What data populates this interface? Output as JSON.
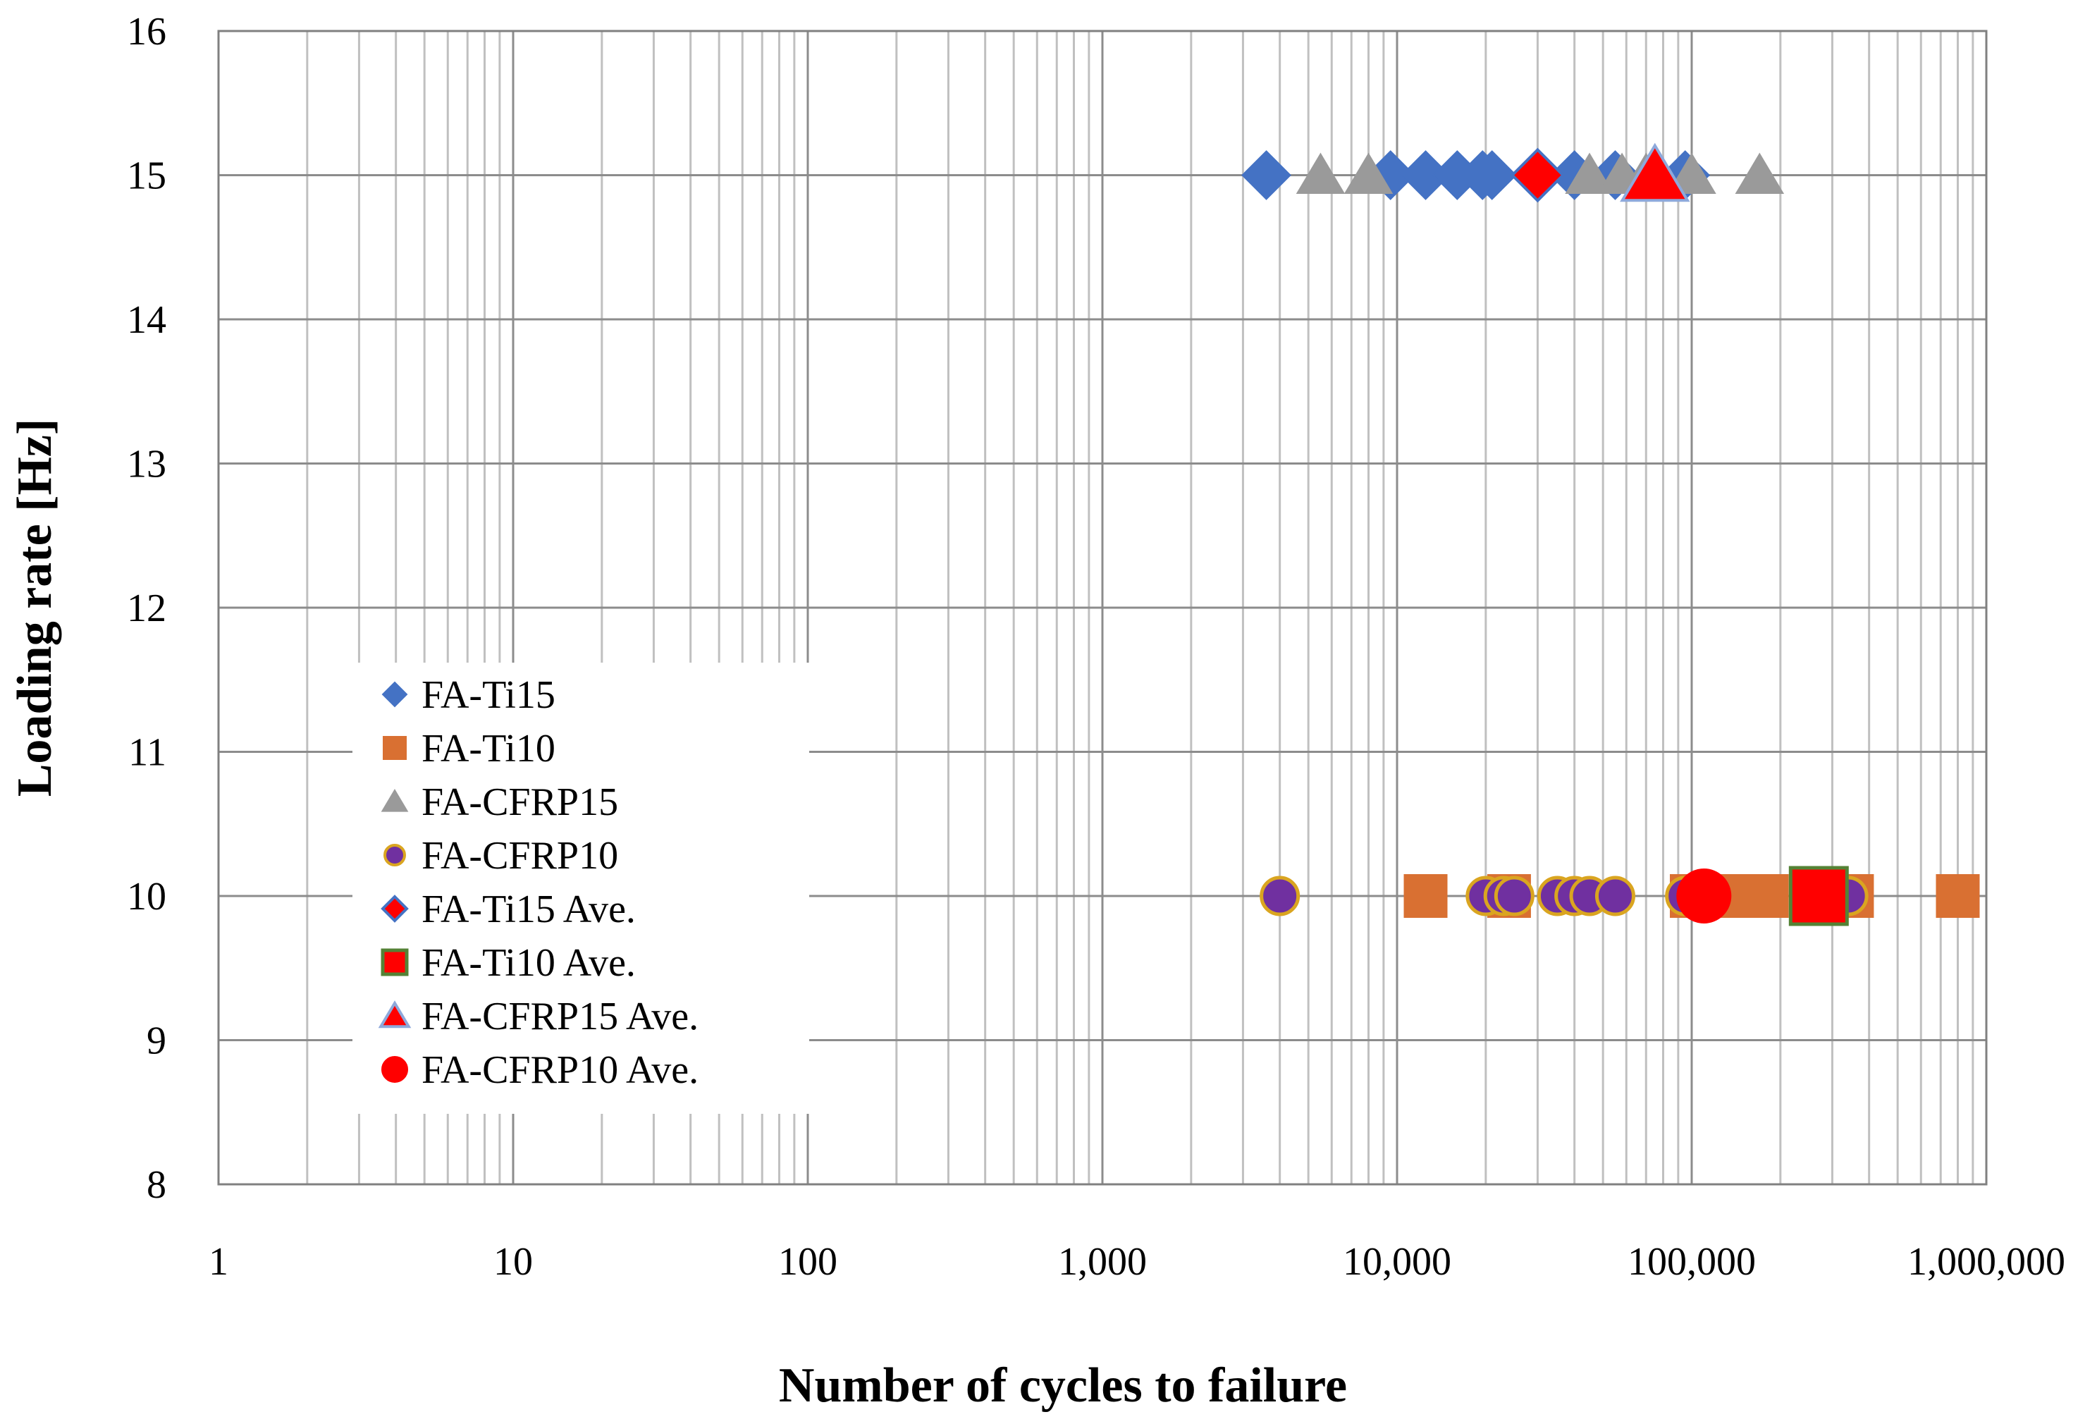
{
  "chart_data": {
    "type": "scatter",
    "title": "",
    "xlabel": "Number of cycles to failure",
    "ylabel": "Loading rate [Hz]",
    "xscale": "log",
    "xlim": [
      1,
      1000000
    ],
    "ylim": [
      8,
      16
    ],
    "grid": true,
    "legend_position": "lower-left",
    "x_tick_labels": [
      "1",
      "10",
      "100",
      "1,000",
      "10,000",
      "100,000",
      "1,000,000"
    ],
    "y_tick_labels": [
      "8",
      "9",
      "10",
      "11",
      "12",
      "13",
      "14",
      "15",
      "16"
    ],
    "series": [
      {
        "name": "FA-Ti15",
        "marker": "diamond",
        "color": "#4472C4",
        "stroke": "#4472C4",
        "x": [
          3600,
          9500,
          12500,
          16000,
          19500,
          21000,
          40000,
          55000,
          95000
        ],
        "y": [
          15,
          15,
          15,
          15,
          15,
          15,
          15,
          15,
          15
        ]
      },
      {
        "name": "FA-Ti10",
        "marker": "square",
        "color": "#D97032",
        "stroke": "#D97032",
        "x": [
          12500,
          24000,
          100000,
          140000,
          180000,
          300000,
          350000,
          800000
        ],
        "y": [
          10,
          10,
          10,
          10,
          10,
          10,
          10,
          10
        ]
      },
      {
        "name": "FA-CFRP15",
        "marker": "triangle",
        "color": "#9A9A9A",
        "stroke": "#9A9A9A",
        "x": [
          5500,
          8000,
          45000,
          58000,
          70000,
          100000,
          170000
        ],
        "y": [
          15,
          15,
          15,
          15,
          15,
          15,
          15
        ]
      },
      {
        "name": "FA-CFRP10",
        "marker": "circle",
        "color": "#7030A0",
        "stroke": "#DAA520",
        "x": [
          4000,
          20000,
          23000,
          25000,
          35000,
          40000,
          45000,
          55000,
          95000,
          250000,
          340000
        ],
        "y": [
          10,
          10,
          10,
          10,
          10,
          10,
          10,
          10,
          10,
          10,
          10
        ]
      },
      {
        "name": "FA-Ti15 Ave.",
        "marker": "diamond",
        "color": "#FF0000",
        "stroke": "#4472C4",
        "x": [
          30000
        ],
        "y": [
          15
        ]
      },
      {
        "name": "FA-Ti10 Ave.",
        "marker": "square",
        "color": "#FF0000",
        "stroke": "#548235",
        "x": [
          270000
        ],
        "y": [
          10
        ]
      },
      {
        "name": "FA-CFRP15 Ave.",
        "marker": "triangle",
        "color": "#FF0000",
        "stroke": "#8EA9DB",
        "x": [
          75000
        ],
        "y": [
          15
        ]
      },
      {
        "name": "FA-CFRP10 Ave.",
        "marker": "circle",
        "color": "#FF0000",
        "stroke": "#FF0000",
        "x": [
          110000
        ],
        "y": [
          10
        ]
      }
    ]
  }
}
